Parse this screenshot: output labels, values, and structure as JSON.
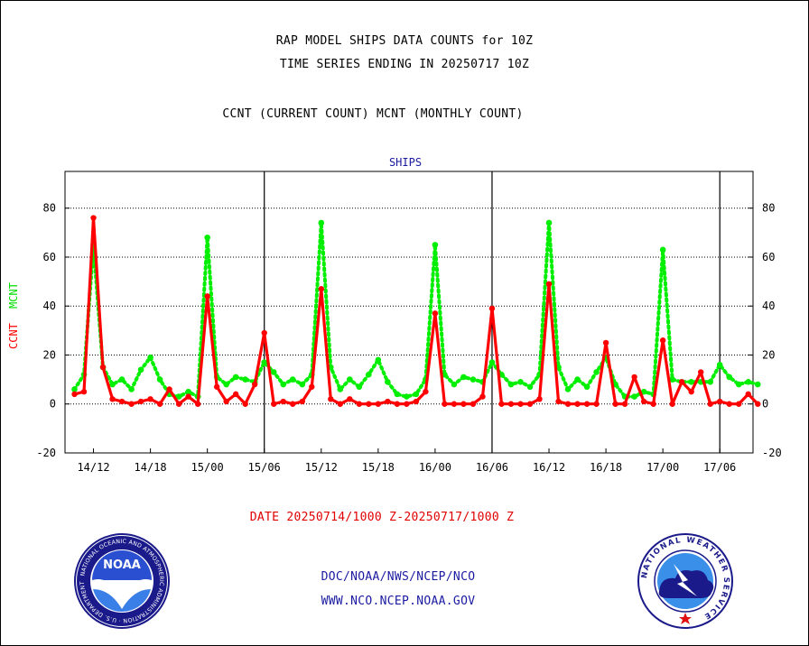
{
  "header": {
    "title_line1": "RAP MODEL SHIPS DATA COUNTS for 10Z",
    "title_line2": "TIME SERIES ENDING IN 20250717 10Z",
    "title_line3": "CCNT (CURRENT COUNT) MCNT (MONTHLY COUNT)"
  },
  "footer": {
    "date_range": "DATE 20250714/1000 Z-20250717/1000 Z",
    "agency": "DOC/NOAA/NWS/NCEP/NCO",
    "website": "WWW.NCO.NCEP.NOAA.GOV"
  },
  "logos": {
    "left_text": "NOAA",
    "left_ring": "NATIONAL OCEANIC AND ATMOSPHERIC ADMINISTRATION · U.S. DEPARTMENT OF COMMERCE",
    "right_ring": "NATIONAL WEATHER SERVICE"
  },
  "colors": {
    "ccnt": "#ff0000",
    "mcnt": "#00ee00",
    "panel_title": "#1a1aa0",
    "axis": "#000000"
  },
  "chart_data": {
    "type": "line",
    "title": "SHIPS",
    "ylabel_series": [
      "CCNT",
      "MCNT"
    ],
    "ylim": [
      -20,
      95
    ],
    "yticks": [
      -20,
      0,
      20,
      40,
      60,
      80
    ],
    "xlim_hours": [
      -1,
      71.5
    ],
    "xtick_labels": [
      {
        "label": "14/12",
        "hour": 2
      },
      {
        "label": "14/18",
        "hour": 8
      },
      {
        "label": "15/00",
        "hour": 14
      },
      {
        "label": "15/06",
        "hour": 20
      },
      {
        "label": "15/12",
        "hour": 26
      },
      {
        "label": "15/18",
        "hour": 32
      },
      {
        "label": "16/00",
        "hour": 38
      },
      {
        "label": "16/06",
        "hour": 44
      },
      {
        "label": "16/12",
        "hour": 50
      },
      {
        "label": "16/18",
        "hour": 56
      },
      {
        "label": "17/00",
        "hour": 62
      },
      {
        "label": "17/06",
        "hour": 68
      }
    ],
    "day_boundary_hours": [
      20,
      44,
      68
    ],
    "grid_y": [
      0,
      20,
      40,
      60,
      80
    ],
    "series": [
      {
        "name": "CCNT",
        "color": "#ff0000",
        "values": [
          4,
          5,
          76,
          15,
          2,
          1,
          0,
          1,
          2,
          0,
          6,
          0,
          3,
          0,
          44,
          7,
          1,
          4,
          0,
          8,
          29,
          0,
          1,
          0,
          1,
          7,
          47,
          2,
          0,
          2,
          0,
          0,
          0,
          1,
          0,
          0,
          1,
          5,
          37,
          0,
          0,
          0,
          0,
          3,
          39,
          0,
          0,
          0,
          0,
          2,
          49,
          1,
          0,
          0,
          0,
          0,
          25,
          0,
          0,
          11,
          1,
          0,
          26,
          0,
          9,
          5,
          13,
          0,
          1,
          0,
          0,
          4,
          0
        ]
      },
      {
        "name": "MCNT",
        "color": "#00ee00",
        "values": [
          6,
          12,
          65,
          15,
          8,
          10,
          6,
          14,
          19,
          10,
          4,
          3,
          5,
          3,
          68,
          11,
          8,
          11,
          10,
          9,
          17,
          13,
          8,
          10,
          8,
          12,
          74,
          15,
          6,
          10,
          7,
          12,
          18,
          9,
          4,
          3,
          4,
          10,
          65,
          12,
          8,
          11,
          10,
          9,
          17,
          12,
          8,
          9,
          7,
          12,
          74,
          15,
          6,
          10,
          7,
          13,
          19,
          8,
          3,
          3,
          5,
          4,
          63,
          10,
          9,
          9,
          9,
          9,
          16,
          11,
          8,
          9,
          8
        ]
      }
    ]
  }
}
